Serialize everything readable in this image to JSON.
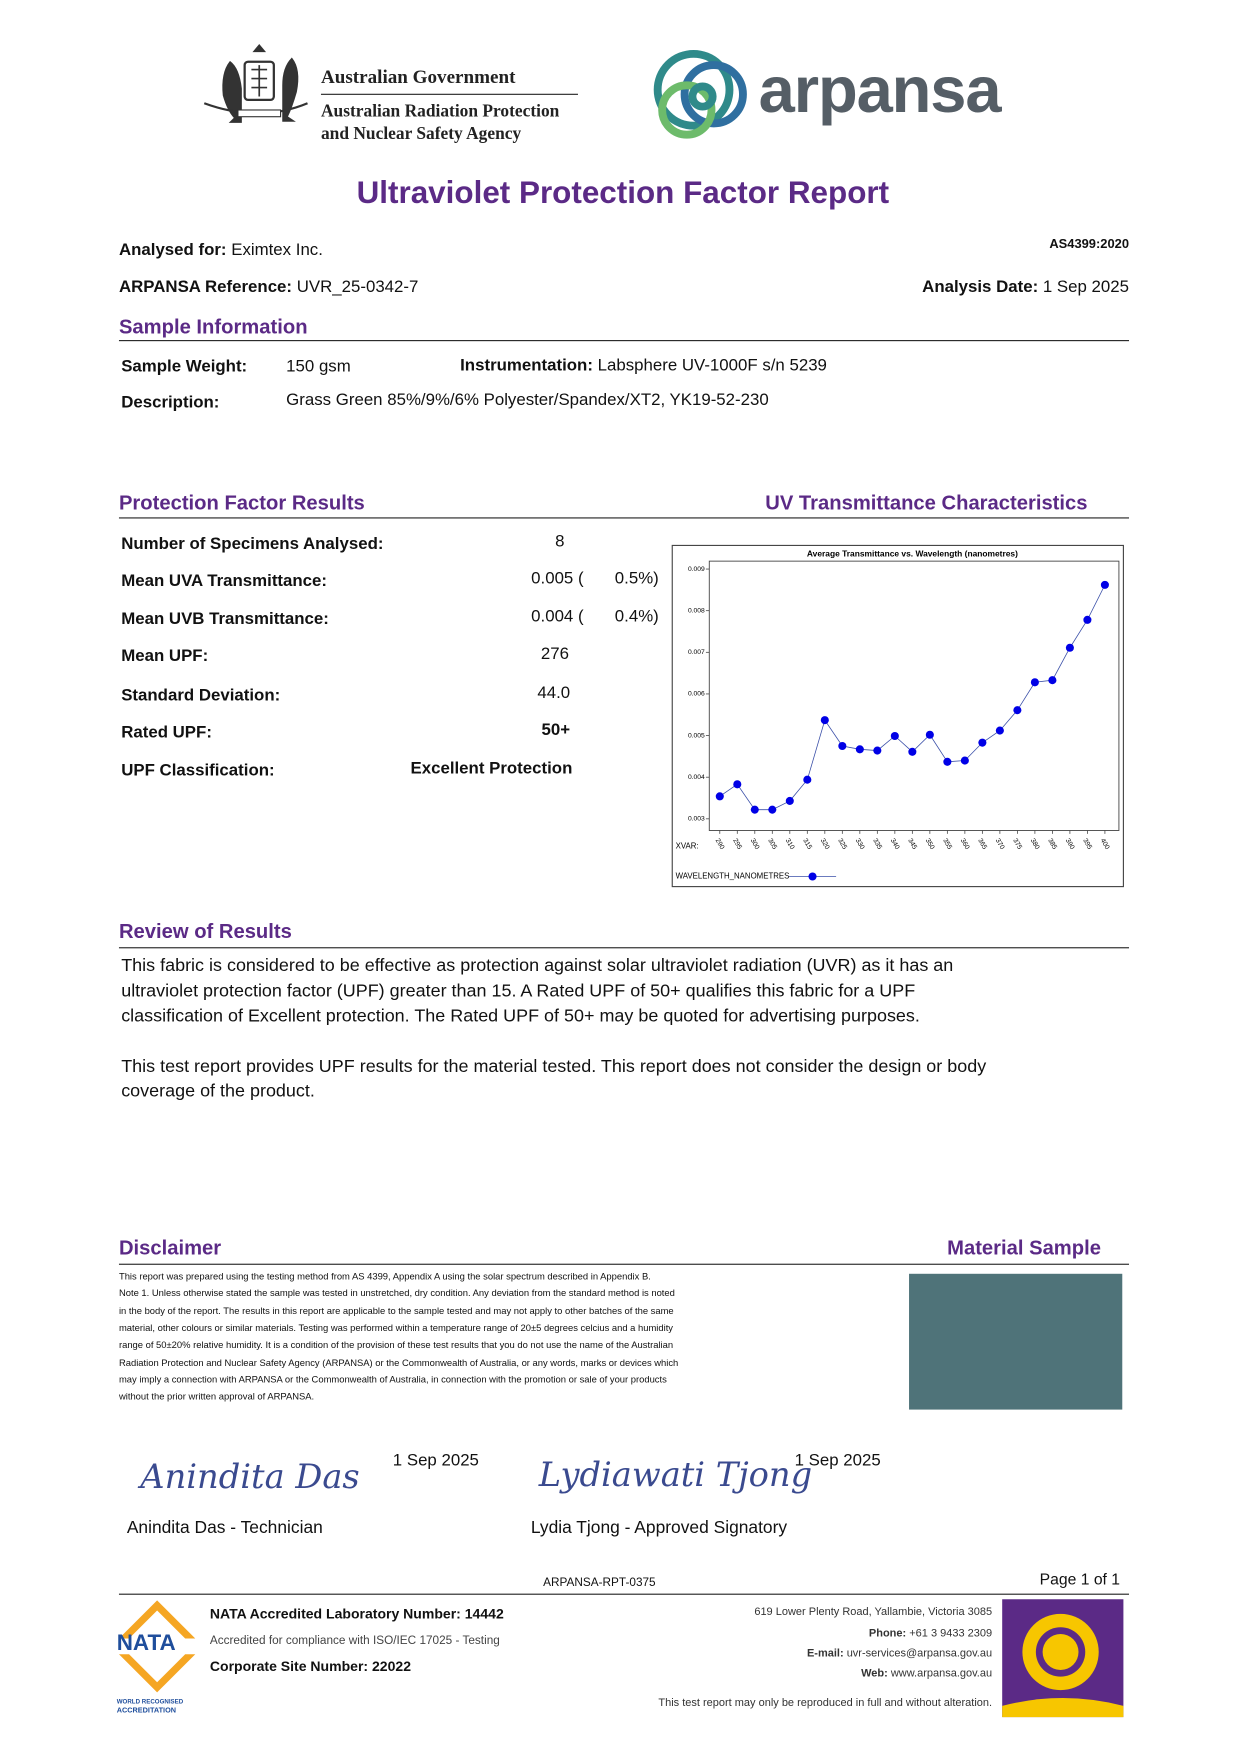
{
  "header": {
    "gov_line1": "Australian Government",
    "gov_line2": "Australian Radiation Protection",
    "gov_line3": "and Nuclear Safety Agency",
    "brand": "arpansa"
  },
  "title": "Ultraviolet Protection Factor Report",
  "analysed_for": {
    "label": "Analysed for:",
    "value": "Eximtex Inc."
  },
  "standard": "AS4399:2020",
  "reference": {
    "label": "ARPANSA Reference:",
    "value": "UVR_25-0342-7"
  },
  "analysis_date": {
    "label": "Analysis Date:",
    "value": "1 Sep 2025"
  },
  "sample_information": {
    "heading": "Sample Information",
    "weight_label": "Sample Weight:",
    "weight": "150 gsm",
    "instrumentation_label": "Instrumentation:",
    "instrumentation": "Labsphere UV-1000F s/n 5239",
    "description_label": "Description:",
    "description": "Grass Green 85%/9%/6% Polyester/Spandex/XT2, YK19-52-230"
  },
  "results": {
    "heading": "Protection Factor Results",
    "rows": [
      {
        "label": "Number of Specimens Analysed:",
        "value": "8"
      },
      {
        "label": "Mean UVA Transmittance:",
        "value": "0.005 (",
        "percent": "0.5%)"
      },
      {
        "label": "Mean UVB Transmittance:",
        "value": "0.004 (",
        "percent": "0.4%)"
      },
      {
        "label": "Mean UPF:",
        "value": "276"
      },
      {
        "label": "Standard Deviation:",
        "value": "44.0"
      },
      {
        "label": "Rated UPF:",
        "value": "50+"
      },
      {
        "label": "UPF Classification:",
        "value": "Excellent Protection"
      }
    ]
  },
  "uv_heading": "UV Transmittance Characteristics",
  "chart_data": {
    "type": "line",
    "title": "Average Transmittance vs. Wavelength (nanometres)",
    "x_axis_label": "XVAR:",
    "x": [
      290,
      295,
      300,
      305,
      310,
      315,
      320,
      325,
      330,
      335,
      340,
      345,
      350,
      355,
      360,
      365,
      370,
      375,
      380,
      385,
      390,
      395,
      400
    ],
    "series": [
      {
        "name": "WAVELENGTH_NANOMETRES",
        "color": "#0000e6",
        "values": [
          0.00354,
          0.00383,
          0.00322,
          0.00322,
          0.00343,
          0.00394,
          0.00537,
          0.00475,
          0.00467,
          0.00464,
          0.00499,
          0.00461,
          0.00502,
          0.00437,
          0.0044,
          0.00483,
          0.00512,
          0.00561,
          0.00628,
          0.00633,
          0.00711,
          0.00778,
          0.00862
        ]
      }
    ],
    "xlim": [
      287,
      404
    ],
    "ylim": [
      0.00272,
      0.00919
    ],
    "yticks": [
      0.003,
      0.004,
      0.005,
      0.006,
      0.007,
      0.008,
      0.009
    ],
    "grid": false
  },
  "review": {
    "heading": "Review of Results",
    "lines": [
      "This fabric is considered to be effective as protection against solar ultraviolet radiation (UVR) as it has an",
      "ultraviolet protection factor (UPF) greater than 15. A Rated UPF of 50+ qualifies this fabric for a UPF",
      "classification of Excellent protection. The Rated UPF of 50+ may be quoted for advertising purposes.",
      "This test report provides UPF results for the material tested. This report does not consider the design or body",
      "coverage of the product."
    ]
  },
  "disclaimer": {
    "heading": "Disclaimer",
    "lines": [
      "This report was prepared using the testing method from AS 4399, Appendix A using the solar spectrum described in Appendix B.",
      "Note 1. Unless otherwise stated the sample was tested in unstretched, dry condition. Any deviation from the standard method is noted",
      "in the body of the report. The results in this report are applicable to the sample tested and may not apply to other batches of the same",
      "material, other colours or similar materials. Testing was performed within a temperature range of 20±5 degrees celcius and a humidity",
      "range of 50±20% relative humidity. It is a condition of the provision of these test results that you do not use the name of the Australian",
      "Radiation Protection and Nuclear Safety Agency (ARPANSA) or the Commonwealth of Australia, or any words, marks or devices which",
      "may imply a connection with ARPANSA or the Commonwealth of Australia, in connection with the promotion or sale of your products",
      "without the prior written approval of ARPANSA."
    ]
  },
  "material_sample": {
    "heading": "Material Sample"
  },
  "signatures": [
    {
      "signature": "Anindita Das",
      "date": "1 Sep 2025",
      "name": "Anindita Das - Technician"
    },
    {
      "signature": "Lydiawati Tjong",
      "date": "1 Sep 2025",
      "name": "Lydia Tjong - Approved Signatory"
    }
  ],
  "footer": {
    "report_id": "ARPANSA-RPT-0375",
    "page": "Page 1 of 1",
    "nata_number": "NATA Accredited Laboratory Number: 14442",
    "accredited": "Accredited for compliance with ISO/IEC 17025 - Testing",
    "corporate": "Corporate Site Number: 22022",
    "address": "619 Lower Plenty Road, Yallambie, Victoria 3085",
    "phone_label": "Phone:",
    "phone": "+61 3 9433 2309",
    "email_label": "E-mail:",
    "email": "uvr-services@arpansa.gov.au",
    "web_label": "Web:",
    "web": "www.arpansa.gov.au",
    "reproduction": "This test report may only be reproduced in full and without alteration.",
    "nata_logo": "NATA",
    "nata_sub1": "WORLD RECOGNISED",
    "nata_sub2": "ACCREDITATION"
  }
}
